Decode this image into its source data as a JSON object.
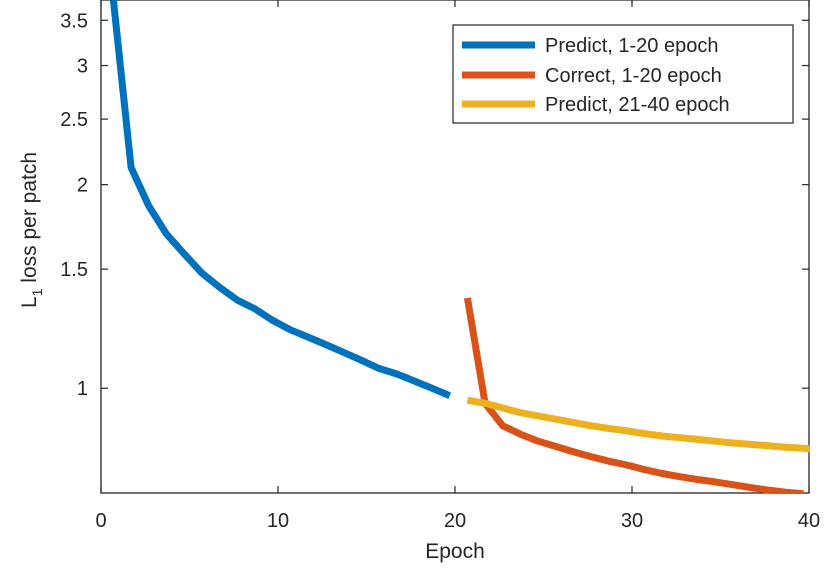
{
  "chart_data": {
    "type": "line",
    "title": "",
    "xlabel": "Epoch",
    "ylabel": "L",
    "ylabel_subscript": "1",
    "ylabel_rest": " loss per patch",
    "xlim": [
      0,
      40
    ],
    "ylim": [
      0.7,
      3.75
    ],
    "yscale": "log",
    "grid": false,
    "legend_position": "top-right",
    "xticks": [
      0,
      10,
      20,
      30,
      40
    ],
    "xtick_labels": [
      "0",
      "10",
      "20",
      "30",
      "40"
    ],
    "yticks": [
      1,
      1.5,
      2,
      2.5,
      3,
      3.5
    ],
    "ytick_labels": [
      "1",
      "1.5",
      "2",
      "2.5",
      "3",
      "3.5"
    ],
    "series": [
      {
        "name": "Predict, 1-20 epoch",
        "color": "#0072BD",
        "x": [
          0.7,
          1.7,
          2.7,
          3.7,
          4.7,
          5.7,
          6.7,
          7.7,
          8.7,
          9.7,
          10.7,
          11.7,
          12.7,
          13.7,
          14.7,
          15.7,
          16.7,
          17.7,
          18.7,
          19.7
        ],
        "y": [
          3.75,
          2.12,
          1.86,
          1.69,
          1.58,
          1.48,
          1.41,
          1.35,
          1.31,
          1.26,
          1.22,
          1.19,
          1.16,
          1.13,
          1.1,
          1.07,
          1.05,
          1.025,
          1.0,
          0.975
        ]
      },
      {
        "name": "Correct, 1-20 epoch",
        "color": "#D95319",
        "x": [
          20.7,
          21.7,
          22.7,
          23.7,
          24.7,
          25.7,
          26.7,
          27.7,
          28.7,
          29.7,
          30.7,
          31.7,
          32.7,
          33.7,
          34.7,
          35.7,
          36.7,
          37.7,
          38.7,
          39.7
        ],
        "y": [
          1.36,
          0.95,
          0.88,
          0.855,
          0.835,
          0.82,
          0.805,
          0.792,
          0.78,
          0.77,
          0.758,
          0.748,
          0.74,
          0.733,
          0.727,
          0.72,
          0.713,
          0.707,
          0.702,
          0.698
        ]
      },
      {
        "name": "Predict, 21-40 epoch",
        "color": "#EDB120",
        "x": [
          20.7,
          21.7,
          22.7,
          23.7,
          24.7,
          25.7,
          26.7,
          27.7,
          28.7,
          29.7,
          30.7,
          31.7,
          32.7,
          33.7,
          34.7,
          35.7,
          36.7,
          37.7,
          38.7,
          39.7,
          40.7
        ],
        "y": [
          0.96,
          0.95,
          0.935,
          0.92,
          0.91,
          0.9,
          0.89,
          0.88,
          0.872,
          0.865,
          0.857,
          0.85,
          0.845,
          0.84,
          0.835,
          0.83,
          0.826,
          0.822,
          0.818,
          0.815,
          0.81
        ]
      }
    ]
  }
}
